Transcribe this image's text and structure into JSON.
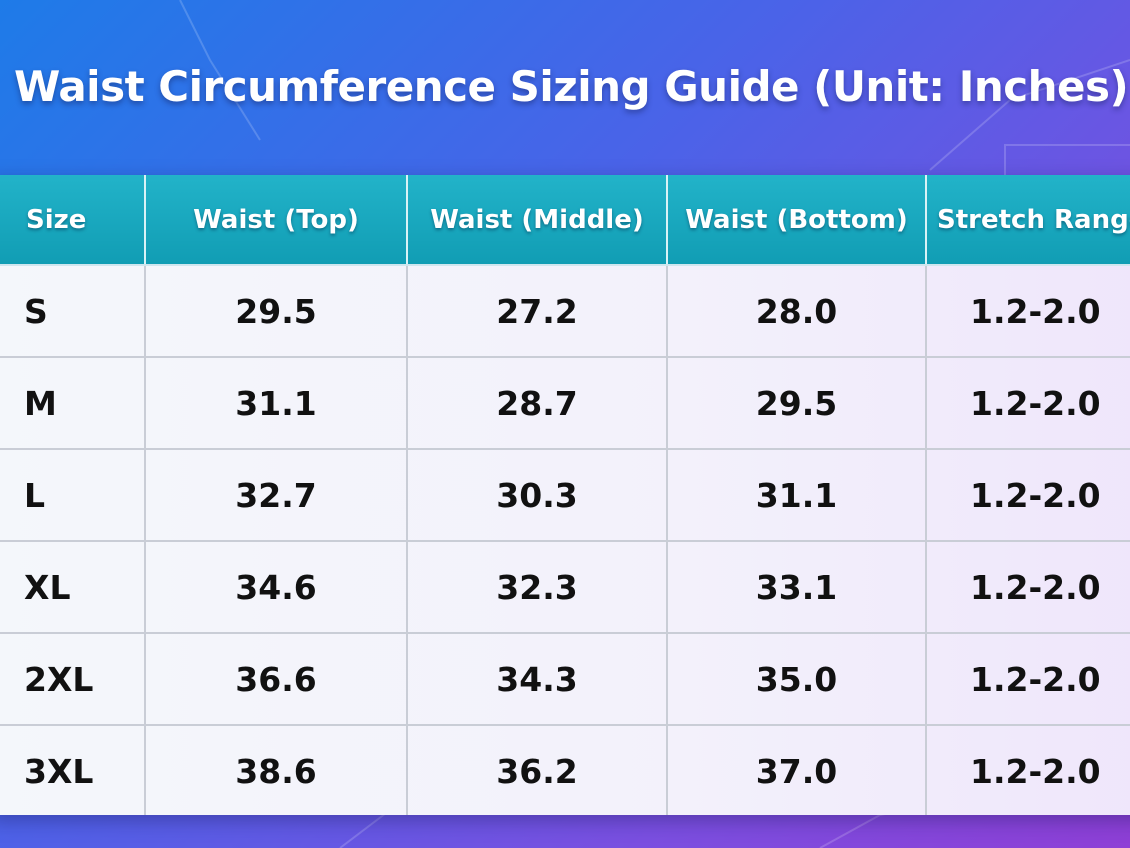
{
  "title": "Waist Circumference Sizing Guide (Unit: Inches)",
  "table": {
    "headers": [
      "Size",
      "Waist (Top)",
      "Waist (Middle)",
      "Waist (Bottom)",
      "Stretch Range"
    ],
    "rows": [
      [
        "S",
        "29.5",
        "27.2",
        "28.0",
        "1.2-2.0"
      ],
      [
        "M",
        "31.1",
        "28.7",
        "29.5",
        "1.2-2.0"
      ],
      [
        "L",
        "32.7",
        "30.3",
        "31.1",
        "1.2-2.0"
      ],
      [
        "XL",
        "34.6",
        "32.3",
        "33.1",
        "1.2-2.0"
      ],
      [
        "2XL",
        "36.6",
        "34.3",
        "35.0",
        "1.2-2.0"
      ],
      [
        "3XL",
        "38.6",
        "36.2",
        "37.0",
        "1.2-2.0"
      ]
    ]
  },
  "colors": {
    "header": "#119db4",
    "background_start": "#1e7be8",
    "background_end": "#8e3fd6"
  }
}
